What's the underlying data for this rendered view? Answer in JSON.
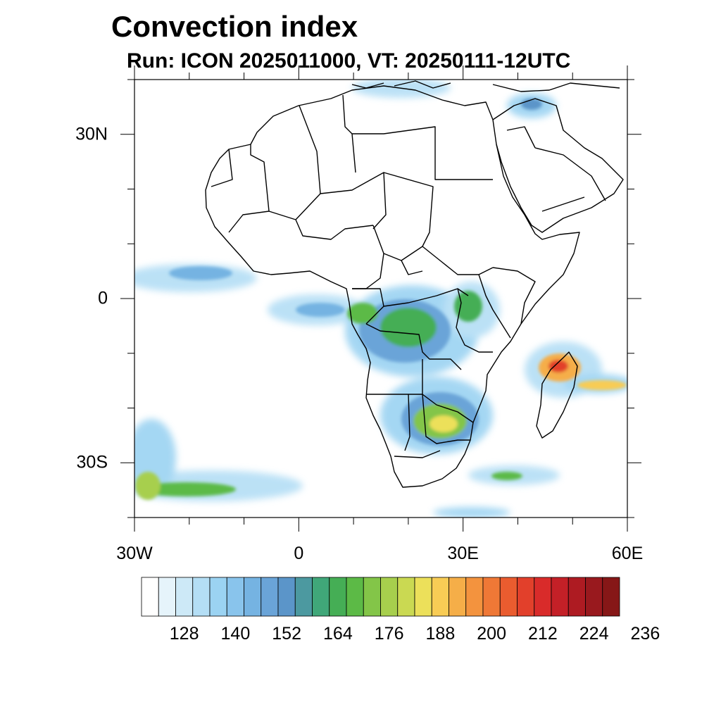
{
  "title": "Convection index",
  "subtitle": "Run: ICON 2025011000,  VT: 20250111-12UTC",
  "map": {
    "projection": "cylindrical equidistant",
    "lon_range": [
      -30,
      60
    ],
    "lat_range": [
      -40,
      40
    ],
    "lon_ticks": [
      {
        "value": -30,
        "label": "30W"
      },
      {
        "value": 0,
        "label": "0"
      },
      {
        "value": 30,
        "label": "30E"
      },
      {
        "value": 60,
        "label": "60E"
      }
    ],
    "lat_ticks": [
      {
        "value": 30,
        "label": "30N"
      },
      {
        "value": 0,
        "label": "0"
      },
      {
        "value": -30,
        "label": "30S"
      }
    ],
    "field_name": "Convection index",
    "features": [
      {
        "region": "Equatorial Atlantic band",
        "intensity": "low-moderate"
      },
      {
        "region": "Congo Basin / Central Africa",
        "intensity": "moderate"
      },
      {
        "region": "Zambia / Zimbabwe / Mozambique",
        "intensity": "moderate-high"
      },
      {
        "region": "Tropical cyclone NE of Madagascar",
        "intensity": "very high"
      },
      {
        "region": "Southern Atlantic / South Indian frontal band",
        "intensity": "moderate"
      }
    ]
  },
  "colorbar": {
    "colors": [
      "#ffffff",
      "#e6f4fb",
      "#cde9f7",
      "#b4def5",
      "#9bd3f2",
      "#89c4ec",
      "#75b3e2",
      "#6aa4d8",
      "#5b95c9",
      "#4c99a0",
      "#40a779",
      "#45ae55",
      "#5cba46",
      "#83c548",
      "#a7cf4d",
      "#cad952",
      "#ece05a",
      "#f8cc55",
      "#f5ae48",
      "#f3933e",
      "#ef7836",
      "#ea5c2f",
      "#e2402b",
      "#d92b2a",
      "#c42027",
      "#ae1b22",
      "#99191e",
      "#861717"
    ],
    "labels": [
      "128",
      "140",
      "152",
      "164",
      "176",
      "188",
      "200",
      "212",
      "224",
      "236"
    ]
  }
}
